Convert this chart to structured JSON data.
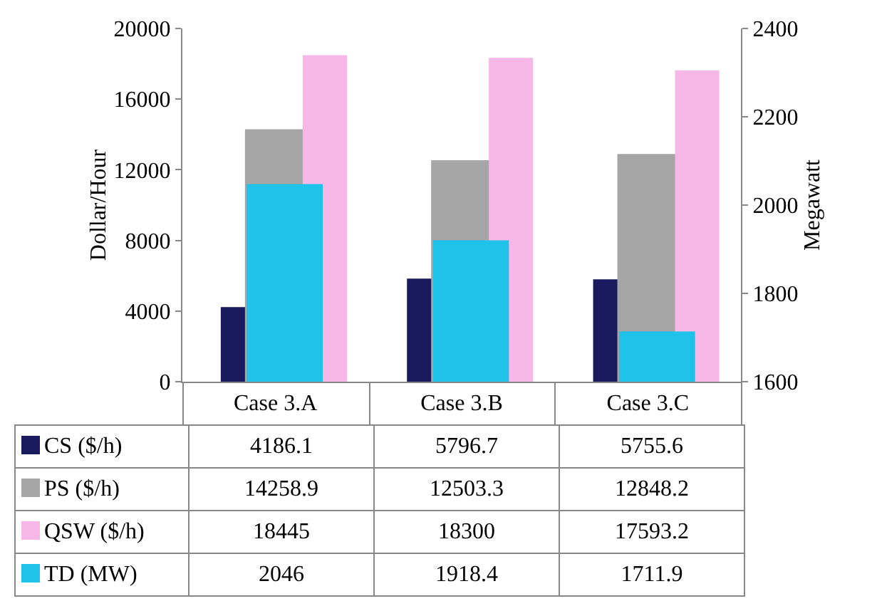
{
  "chart_data": {
    "type": "bar",
    "categories": [
      "Case 3.A",
      "Case 3.B",
      "Case 3.C"
    ],
    "ylabel": "Dollar/Hour",
    "y2label": "Megawatt",
    "ylim": [
      0,
      20000
    ],
    "yticks": [
      0,
      4000,
      8000,
      12000,
      16000,
      20000
    ],
    "y2lim": [
      1600,
      2400
    ],
    "y2ticks": [
      1600,
      1800,
      2000,
      2200,
      2400
    ],
    "data_labels": true,
    "legend": "bottom left",
    "series": [
      {
        "name": "CS ($/h)",
        "color": "#1a1a5e",
        "values": [
          4186.1,
          5796.7,
          5755.6
        ]
      },
      {
        "name": "PS ($/h)",
        "color": "#a6a6a6",
        "values": [
          14258.9,
          12503.3,
          12848.2
        ]
      },
      {
        "name": "QSW ($/h)",
        "color": "#f7b8e8",
        "values": [
          18445,
          18300,
          17593.2
        ]
      },
      {
        "name": "TD (MW)",
        "color": "#1fc3ea",
        "values": [
          2046,
          1918.4,
          1711.9
        ],
        "axis": "y2"
      }
    ]
  }
}
